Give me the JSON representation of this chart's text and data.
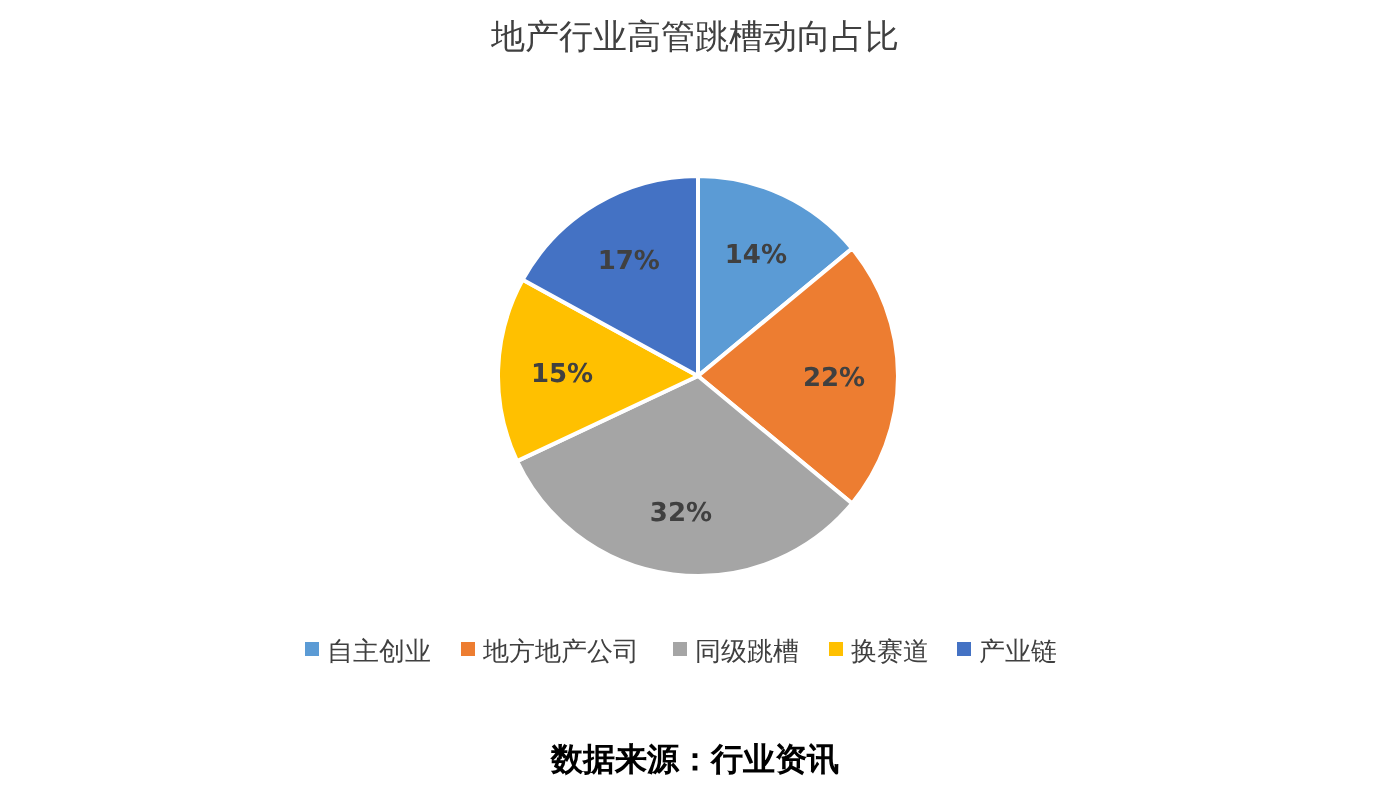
{
  "chart_data": {
    "type": "pie",
    "title": "地产行业高管跳槽动向占比",
    "categories": [
      "自主创业",
      "地方地产公司",
      "同级跳槽",
      "换赛道",
      "产业链"
    ],
    "values": [
      14,
      22,
      32,
      15,
      17
    ],
    "colors": [
      "#5b9bd5",
      "#ed7d31",
      "#a5a5a5",
      "#ffc000",
      "#4472c4"
    ],
    "value_labels": [
      "14%",
      "22%",
      "32%",
      "15%",
      "17%"
    ],
    "legend": "bottom",
    "annotations": [
      "数据来源：行业资讯"
    ]
  }
}
